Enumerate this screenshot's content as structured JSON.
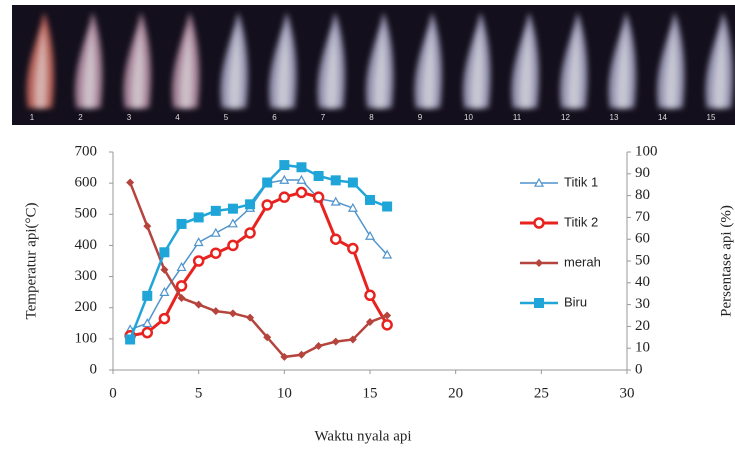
{
  "photo_strip": {
    "labels": [
      "1",
      "2",
      "3",
      "4",
      "5",
      "6",
      "7",
      "8",
      "9",
      "10",
      "11",
      "12",
      "13",
      "14",
      "15"
    ]
  },
  "chart_data": {
    "type": "line",
    "xlabel": "Waktu nyala api",
    "ylabel": "Temperatur api(°C)",
    "y2label": "Persentase api (%)",
    "x": [
      1,
      2,
      3,
      4,
      5,
      6,
      7,
      8,
      9,
      10,
      11,
      12,
      13,
      14,
      15,
      16
    ],
    "xlim": [
      0,
      30
    ],
    "xticks": [
      0,
      5,
      10,
      15,
      20,
      25,
      30
    ],
    "ylim": [
      0,
      700
    ],
    "yticks": [
      0,
      100,
      200,
      300,
      400,
      500,
      600,
      700
    ],
    "y2lim": [
      0,
      100
    ],
    "y2ticks": [
      0,
      10,
      20,
      30,
      40,
      50,
      60,
      70,
      80,
      90,
      100
    ],
    "legend": "right",
    "series": [
      {
        "name": "Titik 1",
        "color": "#4f94cd",
        "marker": "triangle",
        "values": [
          130,
          150,
          250,
          330,
          410,
          440,
          470,
          520,
          600,
          610,
          610,
          550,
          540,
          520,
          430,
          370
        ]
      },
      {
        "name": "Titik 2",
        "color": "#e8231f",
        "marker": "circle",
        "values": [
          110,
          120,
          165,
          270,
          350,
          375,
          400,
          440,
          530,
          555,
          570,
          555,
          420,
          390,
          240,
          145
        ]
      },
      {
        "name": "merah",
        "color": "#b5443d",
        "marker": "diamond",
        "axis": "y2",
        "values": [
          86,
          66,
          46,
          33,
          30,
          27,
          26,
          24,
          15,
          6,
          7,
          11,
          13,
          14,
          22,
          25
        ]
      },
      {
        "name": "Biru",
        "color": "#1fa5d8",
        "marker": "square",
        "axis": "y2",
        "values": [
          14,
          34,
          54,
          67,
          70,
          73,
          74,
          76,
          86,
          94,
          93,
          89,
          87,
          86,
          78,
          75
        ]
      }
    ]
  }
}
